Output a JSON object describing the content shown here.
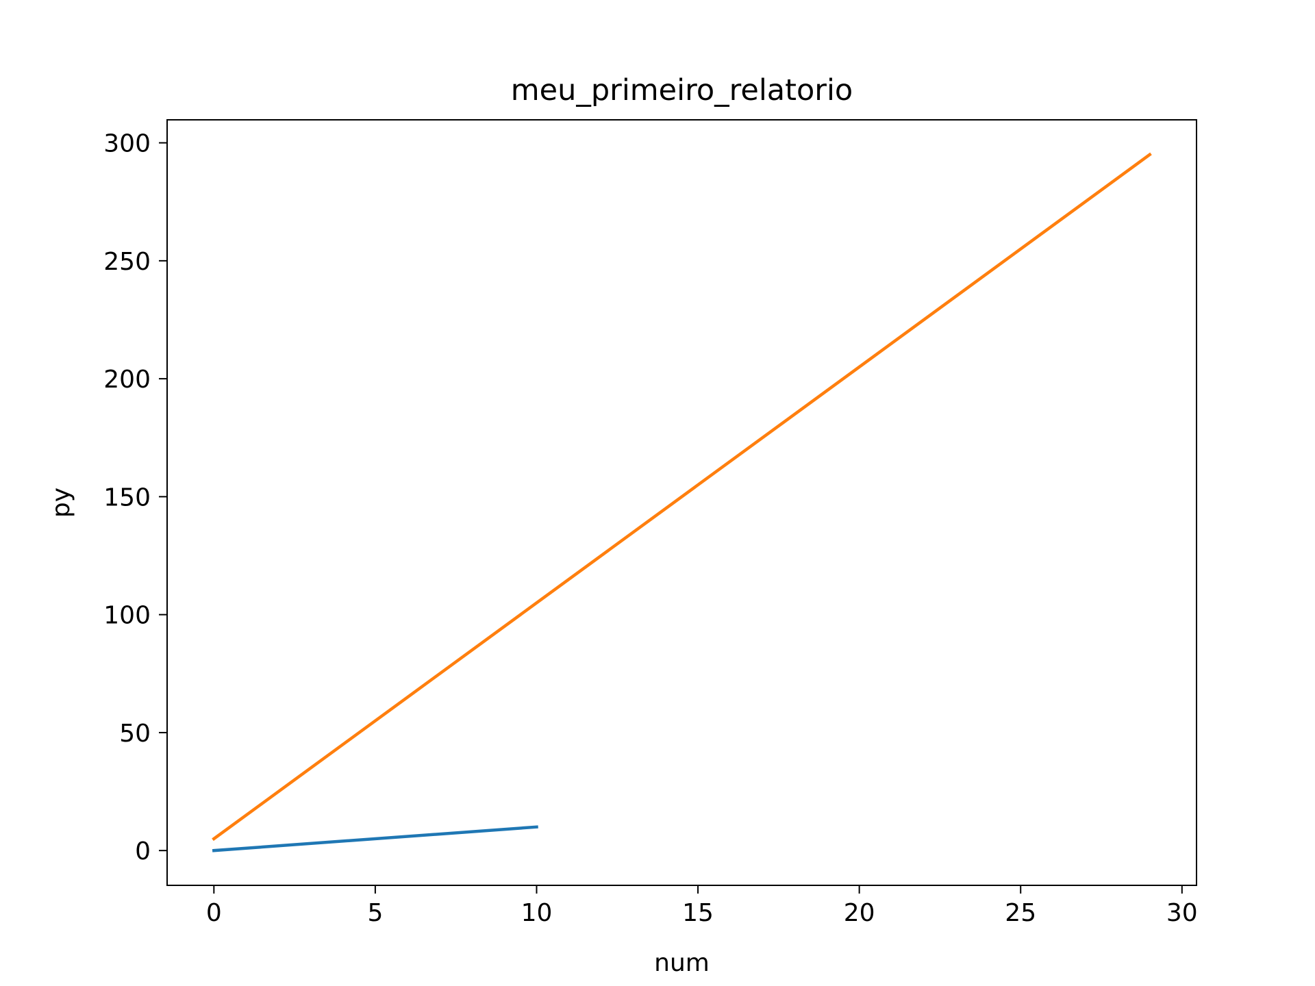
{
  "chart_data": {
    "type": "line",
    "title": "meu_primeiro_relatorio",
    "xlabel": "num",
    "ylabel": "py",
    "xlim": [
      -1.45,
      30.45
    ],
    "ylim": [
      -14.75,
      309.75
    ],
    "xticks": [
      0,
      5,
      10,
      15,
      20,
      25,
      30
    ],
    "yticks": [
      0,
      50,
      100,
      150,
      200,
      250,
      300
    ],
    "grid": false,
    "legend": "none",
    "series": [
      {
        "color": "#1f77b4",
        "x": [
          0,
          10
        ],
        "y": [
          0,
          10
        ]
      },
      {
        "color": "#ff7f0e",
        "x": [
          0,
          29
        ],
        "y": [
          5,
          295
        ]
      }
    ]
  }
}
